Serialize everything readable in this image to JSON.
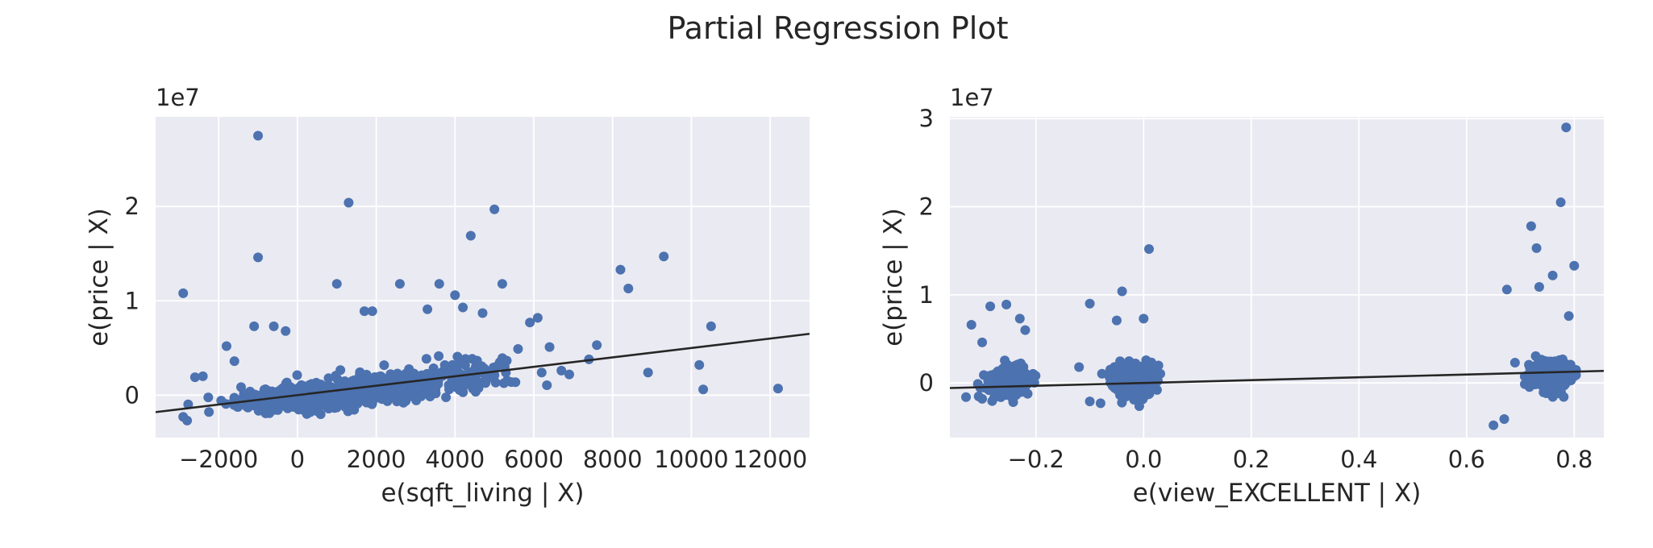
{
  "figure": {
    "title": "Partial Regression Plot"
  },
  "chart_data": [
    {
      "type": "scatter",
      "title": "",
      "xlabel": "e(sqft_living | X)",
      "ylabel": "e(price | X)",
      "y_offset_label": "1e7",
      "xlim": [
        -3600,
        13000
      ],
      "ylim": [
        -4500000,
        29500000
      ],
      "xticks": [
        -2000,
        0,
        2000,
        4000,
        6000,
        8000,
        10000,
        12000
      ],
      "xtick_labels": [
        "−2000",
        "0",
        "2000",
        "4000",
        "6000",
        "8000",
        "10000",
        "12000"
      ],
      "yticks": [
        0,
        10000000,
        20000000
      ],
      "ytick_labels": [
        "0",
        "1",
        "2"
      ],
      "grid": true,
      "point_color": "#4c72b0",
      "fit_line": {
        "slope": 500,
        "intercept": 0
      },
      "clusters": [
        {
          "x_center": 200,
          "x_spread": 1700,
          "y_center": -300000,
          "y_spread": 1200000,
          "count": 650
        },
        {
          "x_center": 2200,
          "x_spread": 1400,
          "y_center": 800000,
          "y_spread": 1500000,
          "count": 300
        },
        {
          "x_center": 4300,
          "x_spread": 1200,
          "y_center": 2000000,
          "y_spread": 1800000,
          "count": 110
        }
      ],
      "points": [
        [
          -1000,
          27500000
        ],
        [
          1300,
          20400000
        ],
        [
          5000,
          19700000
        ],
        [
          4400,
          16900000
        ],
        [
          -1000,
          14600000
        ],
        [
          9300,
          14700000
        ],
        [
          8200,
          13300000
        ],
        [
          8400,
          11300000
        ],
        [
          -2900,
          10800000
        ],
        [
          1000,
          11800000
        ],
        [
          2600,
          11800000
        ],
        [
          3600,
          11800000
        ],
        [
          5200,
          11800000
        ],
        [
          4000,
          10600000
        ],
        [
          10500,
          7300000
        ],
        [
          10200,
          3200000
        ],
        [
          10300,
          600000
        ],
        [
          12200,
          700000
        ],
        [
          8900,
          2400000
        ],
        [
          7600,
          5300000
        ],
        [
          7400,
          3800000
        ],
        [
          6100,
          8200000
        ],
        [
          5900,
          7700000
        ],
        [
          6400,
          5100000
        ],
        [
          6200,
          2400000
        ],
        [
          6900,
          2200000
        ],
        [
          1700,
          8900000
        ],
        [
          1900,
          8900000
        ],
        [
          -1100,
          7300000
        ],
        [
          -600,
          7300000
        ],
        [
          -300,
          6800000
        ],
        [
          -1800,
          5200000
        ],
        [
          -2600,
          1900000
        ],
        [
          -2400,
          2000000
        ],
        [
          -2900,
          -2300000
        ],
        [
          -2800,
          -2700000
        ],
        [
          3300,
          9100000
        ],
        [
          4200,
          9300000
        ],
        [
          4700,
          8700000
        ],
        [
          -1600,
          3600000
        ],
        [
          6700,
          2600000
        ],
        [
          5600,
          4900000
        ]
      ]
    },
    {
      "type": "scatter",
      "title": "",
      "xlabel": "e(view_EXCELLENT | X)",
      "ylabel": "e(price | X)",
      "y_offset_label": "1e7",
      "xlim": [
        -0.36,
        0.855
      ],
      "ylim": [
        -6200000,
        30200000
      ],
      "xticks": [
        -0.2,
        0.0,
        0.2,
        0.4,
        0.6,
        0.8
      ],
      "xtick_labels": [
        "−0.2",
        "0.0",
        "0.2",
        "0.4",
        "0.6",
        "0.8"
      ],
      "yticks": [
        0,
        10000000,
        20000000,
        30000000
      ],
      "ytick_labels": [
        "0",
        "1",
        "2",
        "3"
      ],
      "grid": true,
      "point_color": "#4c72b0",
      "fit_line": {
        "slope": 1600000,
        "intercept": 0
      },
      "clusters": [
        {
          "x_center": -0.25,
          "x_spread": 0.035,
          "y_center": 200000,
          "y_spread": 1500000,
          "count": 420
        },
        {
          "x_center": -0.02,
          "x_spread": 0.035,
          "y_center": 300000,
          "y_spread": 1600000,
          "count": 650
        },
        {
          "x_center": 0.755,
          "x_spread": 0.035,
          "y_center": 900000,
          "y_spread": 1600000,
          "count": 320
        }
      ],
      "points": [
        [
          0.785,
          29000000
        ],
        [
          0.775,
          20500000
        ],
        [
          0.72,
          17800000
        ],
        [
          0.73,
          15300000
        ],
        [
          0.8,
          13300000
        ],
        [
          0.76,
          12200000
        ],
        [
          0.735,
          10900000
        ],
        [
          0.675,
          10600000
        ],
        [
          0.01,
          15200000
        ],
        [
          -0.04,
          10400000
        ],
        [
          -0.1,
          9000000
        ],
        [
          -0.255,
          8900000
        ],
        [
          -0.285,
          8700000
        ],
        [
          -0.32,
          6600000
        ],
        [
          -0.23,
          7300000
        ],
        [
          -0.22,
          6000000
        ],
        [
          -0.3,
          4600000
        ],
        [
          -0.3,
          -1800000
        ],
        [
          -0.33,
          -1600000
        ],
        [
          -0.08,
          -2300000
        ],
        [
          -0.1,
          -2100000
        ],
        [
          -0.12,
          1800000
        ],
        [
          0.65,
          -4800000
        ],
        [
          0.67,
          -4100000
        ],
        [
          0.69,
          2300000
        ],
        [
          -0.05,
          7100000
        ],
        [
          0.0,
          7300000
        ],
        [
          0.79,
          7600000
        ]
      ]
    }
  ]
}
